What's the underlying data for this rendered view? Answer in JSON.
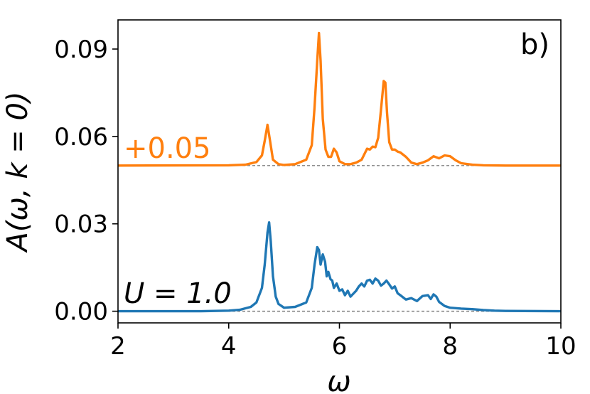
{
  "chart_data": {
    "type": "line",
    "panel_label": "b)",
    "xlabel": "ω",
    "ylabel": "A(ω, k = 0)",
    "xlim": [
      2,
      10
    ],
    "ylim": [
      -0.004,
      0.1
    ],
    "xticks": [
      "2",
      "4",
      "6",
      "8",
      "10"
    ],
    "yticks": [
      "0.00",
      "0.03",
      "0.06",
      "0.09"
    ],
    "grid": false,
    "annotations": [
      {
        "text": "+0.05",
        "color": "#ff7f0e"
      },
      {
        "text": "U = 1.0",
        "color": "#000000"
      }
    ],
    "baselines": [
      0.0,
      0.05
    ],
    "series": [
      {
        "color": "#1f77b4",
        "offset": 0.0,
        "x": [
          2.0,
          3.5,
          4.0,
          4.2,
          4.4,
          4.5,
          4.6,
          4.65,
          4.7,
          4.73,
          4.76,
          4.8,
          4.85,
          4.9,
          5.0,
          5.2,
          5.4,
          5.5,
          5.55,
          5.6,
          5.63,
          5.66,
          5.7,
          5.74,
          5.77,
          5.8,
          5.84,
          5.87,
          5.9,
          5.95,
          6.0,
          6.05,
          6.1,
          6.15,
          6.2,
          6.25,
          6.3,
          6.35,
          6.4,
          6.45,
          6.5,
          6.55,
          6.6,
          6.65,
          6.7,
          6.75,
          6.8,
          6.85,
          6.9,
          6.95,
          7.0,
          7.05,
          7.1,
          7.2,
          7.3,
          7.4,
          7.5,
          7.6,
          7.65,
          7.7,
          7.75,
          7.8,
          7.9,
          8.0,
          8.2,
          8.4,
          8.6,
          8.8,
          9.0,
          10.0
        ],
        "y": [
          0.0,
          0.0,
          0.0002,
          0.0005,
          0.0015,
          0.003,
          0.008,
          0.016,
          0.027,
          0.0305,
          0.024,
          0.012,
          0.005,
          0.0025,
          0.0012,
          0.0015,
          0.003,
          0.008,
          0.016,
          0.022,
          0.021,
          0.016,
          0.0195,
          0.017,
          0.012,
          0.0135,
          0.011,
          0.0105,
          0.008,
          0.0095,
          0.007,
          0.0075,
          0.0055,
          0.007,
          0.005,
          0.006,
          0.007,
          0.0085,
          0.0095,
          0.0085,
          0.0105,
          0.0108,
          0.0095,
          0.0112,
          0.0105,
          0.0088,
          0.0095,
          0.0105,
          0.0092,
          0.0078,
          0.0085,
          0.0062,
          0.0055,
          0.004,
          0.0045,
          0.0035,
          0.0052,
          0.0055,
          0.0042,
          0.0058,
          0.005,
          0.0032,
          0.0018,
          0.0012,
          0.0009,
          0.0007,
          0.0004,
          0.0002,
          0.0001,
          0.0
        ]
      },
      {
        "color": "#ff7f0e",
        "offset": 0.05,
        "x": [
          2.0,
          4.0,
          4.3,
          4.5,
          4.6,
          4.65,
          4.7,
          4.75,
          4.8,
          4.9,
          5.0,
          5.2,
          5.4,
          5.5,
          5.55,
          5.6,
          5.63,
          5.66,
          5.7,
          5.75,
          5.8,
          5.85,
          5.9,
          5.95,
          6.0,
          6.1,
          6.2,
          6.3,
          6.4,
          6.5,
          6.55,
          6.6,
          6.65,
          6.7,
          6.75,
          6.8,
          6.83,
          6.86,
          6.9,
          6.95,
          7.0,
          7.05,
          7.1,
          7.2,
          7.3,
          7.4,
          7.5,
          7.6,
          7.7,
          7.8,
          7.9,
          8.0,
          8.1,
          8.2,
          8.4,
          8.6,
          9.0,
          10.0
        ],
        "y": [
          0.05,
          0.0501,
          0.0503,
          0.0512,
          0.0535,
          0.0585,
          0.064,
          0.058,
          0.052,
          0.0505,
          0.0502,
          0.0505,
          0.052,
          0.057,
          0.07,
          0.086,
          0.0955,
          0.086,
          0.066,
          0.0555,
          0.053,
          0.053,
          0.0558,
          0.0545,
          0.0515,
          0.0505,
          0.0505,
          0.051,
          0.052,
          0.0558,
          0.0555,
          0.0565,
          0.0563,
          0.0595,
          0.069,
          0.079,
          0.0785,
          0.068,
          0.058,
          0.0555,
          0.0555,
          0.0548,
          0.0545,
          0.053,
          0.051,
          0.0505,
          0.051,
          0.0518,
          0.0532,
          0.0525,
          0.0535,
          0.0532,
          0.0518,
          0.0508,
          0.0503,
          0.0501,
          0.05,
          0.05
        ]
      }
    ]
  }
}
